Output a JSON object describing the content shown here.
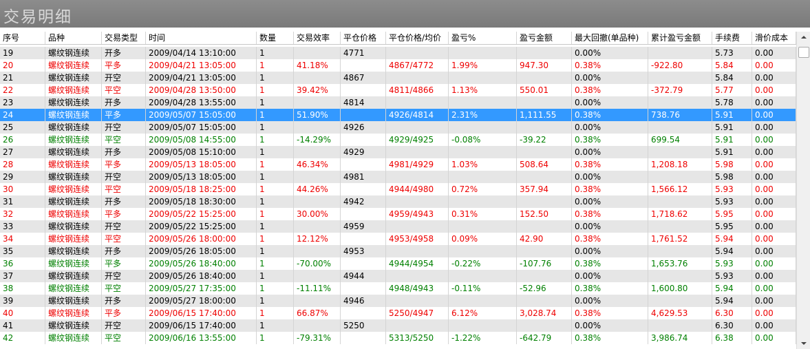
{
  "header": {
    "title": "交易明细"
  },
  "table": {
    "columns": [
      "序号",
      "品种",
      "交易类型",
      "时间",
      "数量",
      "交易效率",
      "平仓价格",
      "平仓价格/均价",
      "盈亏%",
      "盈亏金额",
      "最大回撤(单品种)",
      "累计盈亏金额",
      "手续费",
      "滑价成本"
    ],
    "selected_row": 5,
    "selected_color": "#3399ff",
    "rows": [
      {
        "color": "#000000",
        "cells": [
          "19",
          "螺纹钢连续",
          "开多",
          "2009/04/14 13:10:00",
          "1",
          null,
          "4771",
          null,
          null,
          null,
          "0.00%",
          null,
          "5.73",
          "0.00"
        ]
      },
      {
        "color": "#ee0000",
        "cells": [
          "20",
          "螺纹钢连续",
          "平多",
          "2009/04/21 13:05:00",
          "1",
          "41.18%",
          null,
          "4867/4772",
          "1.99%",
          "947.30",
          "0.38%",
          "-922.80",
          "5.84",
          "0.00"
        ]
      },
      {
        "color": "#000000",
        "cells": [
          "21",
          "螺纹钢连续",
          "开空",
          "2009/04/21 13:05:00",
          "1",
          null,
          "4867",
          null,
          null,
          null,
          "0.00%",
          null,
          "5.84",
          "0.00"
        ]
      },
      {
        "color": "#ee0000",
        "cells": [
          "22",
          "螺纹钢连续",
          "平空",
          "2009/04/28 13:50:00",
          "1",
          "39.42%",
          null,
          "4811/4866",
          "1.13%",
          "550.01",
          "0.38%",
          "-372.79",
          "5.77",
          "0.00"
        ]
      },
      {
        "color": "#000000",
        "cells": [
          "23",
          "螺纹钢连续",
          "开多",
          "2009/04/28 13:55:00",
          "1",
          null,
          "4814",
          null,
          null,
          null,
          "0.00%",
          null,
          "5.78",
          "0.00"
        ]
      },
      {
        "color": "#ffffff",
        "cells": [
          "24",
          "螺纹钢连续",
          "平多",
          "2009/05/07 15:05:00",
          "1",
          "51.90%",
          null,
          "4926/4814",
          "2.31%",
          "1,111.55",
          "0.38%",
          "738.76",
          "5.91",
          "0.00"
        ]
      },
      {
        "color": "#000000",
        "cells": [
          "25",
          "螺纹钢连续",
          "开空",
          "2009/05/07 15:05:00",
          "1",
          null,
          "4926",
          null,
          null,
          null,
          "0.00%",
          null,
          "5.91",
          "0.00"
        ]
      },
      {
        "color": "#008000",
        "cells": [
          "26",
          "螺纹钢连续",
          "平空",
          "2009/05/08 14:55:00",
          "1",
          "-14.29%",
          null,
          "4929/4925",
          "-0.08%",
          "-39.22",
          "0.38%",
          "699.54",
          "5.91",
          "0.00"
        ]
      },
      {
        "color": "#000000",
        "cells": [
          "27",
          "螺纹钢连续",
          "开多",
          "2009/05/08 15:10:00",
          "1",
          null,
          "4929",
          null,
          null,
          null,
          "0.00%",
          null,
          "5.91",
          "0.00"
        ]
      },
      {
        "color": "#ee0000",
        "cells": [
          "28",
          "螺纹钢连续",
          "平多",
          "2009/05/13 18:05:00",
          "1",
          "46.34%",
          null,
          "4981/4929",
          "1.03%",
          "508.64",
          "0.38%",
          "1,208.18",
          "5.98",
          "0.00"
        ]
      },
      {
        "color": "#000000",
        "cells": [
          "29",
          "螺纹钢连续",
          "开空",
          "2009/05/13 18:05:00",
          "1",
          null,
          "4981",
          null,
          null,
          null,
          "0.00%",
          null,
          "5.98",
          "0.00"
        ]
      },
      {
        "color": "#ee0000",
        "cells": [
          "30",
          "螺纹钢连续",
          "平空",
          "2009/05/18 18:25:00",
          "1",
          "44.26%",
          null,
          "4944/4980",
          "0.72%",
          "357.94",
          "0.38%",
          "1,566.12",
          "5.93",
          "0.00"
        ]
      },
      {
        "color": "#000000",
        "cells": [
          "31",
          "螺纹钢连续",
          "开多",
          "2009/05/18 18:30:00",
          "1",
          null,
          "4942",
          null,
          null,
          null,
          "0.00%",
          null,
          "5.93",
          "0.00"
        ]
      },
      {
        "color": "#ee0000",
        "cells": [
          "32",
          "螺纹钢连续",
          "平多",
          "2009/05/22 15:25:00",
          "1",
          "30.00%",
          null,
          "4959/4943",
          "0.31%",
          "152.50",
          "0.38%",
          "1,718.62",
          "5.95",
          "0.00"
        ]
      },
      {
        "color": "#000000",
        "cells": [
          "33",
          "螺纹钢连续",
          "开空",
          "2009/05/22 15:25:00",
          "1",
          null,
          "4959",
          null,
          null,
          null,
          "0.00%",
          null,
          "5.95",
          "0.00"
        ]
      },
      {
        "color": "#ee0000",
        "cells": [
          "34",
          "螺纹钢连续",
          "平空",
          "2009/05/26 18:00:00",
          "1",
          "12.12%",
          null,
          "4953/4958",
          "0.09%",
          "42.90",
          "0.38%",
          "1,761.52",
          "5.94",
          "0.00"
        ]
      },
      {
        "color": "#000000",
        "cells": [
          "35",
          "螺纹钢连续",
          "开多",
          "2009/05/26 18:05:00",
          "1",
          null,
          "4953",
          null,
          null,
          null,
          "0.00%",
          null,
          "5.94",
          "0.00"
        ]
      },
      {
        "color": "#008000",
        "cells": [
          "36",
          "螺纹钢连续",
          "平多",
          "2009/05/26 18:40:00",
          "1",
          "-70.00%",
          null,
          "4944/4954",
          "-0.22%",
          "-107.76",
          "0.38%",
          "1,653.76",
          "5.93",
          "0.00"
        ]
      },
      {
        "color": "#000000",
        "cells": [
          "37",
          "螺纹钢连续",
          "开空",
          "2009/05/26 18:40:00",
          "1",
          null,
          "4944",
          null,
          null,
          null,
          "0.00%",
          null,
          "5.93",
          "0.00"
        ]
      },
      {
        "color": "#008000",
        "cells": [
          "38",
          "螺纹钢连续",
          "平空",
          "2009/05/27 17:35:00",
          "1",
          "-11.11%",
          null,
          "4948/4943",
          "-0.11%",
          "-52.96",
          "0.38%",
          "1,600.80",
          "5.94",
          "0.00"
        ]
      },
      {
        "color": "#000000",
        "cells": [
          "39",
          "螺纹钢连续",
          "开多",
          "2009/05/27 18:00:00",
          "1",
          null,
          "4946",
          null,
          null,
          null,
          "0.00%",
          null,
          "5.94",
          "0.00"
        ]
      },
      {
        "color": "#ee0000",
        "cells": [
          "40",
          "螺纹钢连续",
          "平多",
          "2009/06/15 17:40:00",
          "1",
          "66.87%",
          null,
          "5250/4947",
          "6.12%",
          "3,028.74",
          "0.38%",
          "4,629.53",
          "6.30",
          "0.00"
        ]
      },
      {
        "color": "#000000",
        "cells": [
          "41",
          "螺纹钢连续",
          "开空",
          "2009/06/15 17:40:00",
          "1",
          null,
          "5250",
          null,
          null,
          null,
          "0.00%",
          null,
          "6.30",
          "0.00"
        ]
      },
      {
        "color": "#008000",
        "cells": [
          "42",
          "螺纹钢连续",
          "平空",
          "2009/06/16 13:55:00",
          "1",
          "-79.31%",
          null,
          "5313/5250",
          "-1.22%",
          "-642.79",
          "0.38%",
          "3,986.74",
          "6.38",
          "0.00"
        ]
      }
    ]
  }
}
